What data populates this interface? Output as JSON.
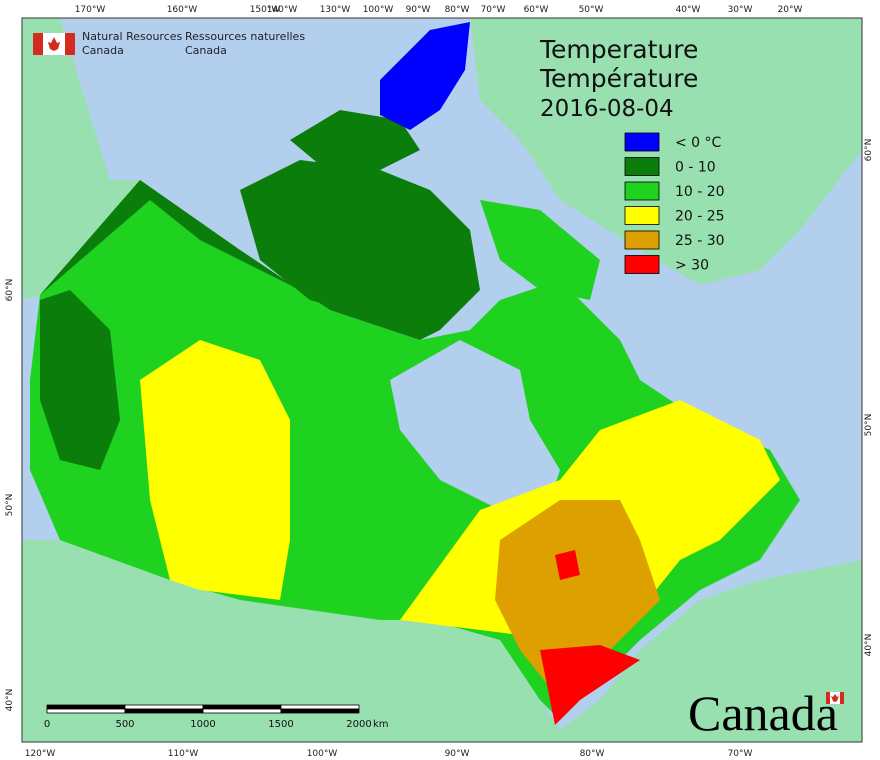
{
  "header": {
    "org_en": [
      "Natural Resources",
      "Canada"
    ],
    "org_fr": [
      "Ressources naturelles",
      "Canada"
    ],
    "title_en": "Temperature",
    "title_fr": "Température",
    "date": "2016-08-04"
  },
  "legend": {
    "items": [
      {
        "label": "< 0 °C",
        "color": "#0000ff"
      },
      {
        "label": "0 - 10",
        "color": "#0a7d0a"
      },
      {
        "label": "10 - 20",
        "color": "#1fd21f"
      },
      {
        "label": "20 - 25",
        "color": "#ffff00"
      },
      {
        "label": "25 - 30",
        "color": "#dea000"
      },
      {
        "label": "> 30",
        "color": "#ff0000"
      }
    ]
  },
  "scale_bar": {
    "labels": [
      "0",
      "500",
      "1000",
      "1500",
      "2000"
    ],
    "unit": "km"
  },
  "graticule": {
    "top": [
      "170°W",
      "160°W",
      "150°W",
      "140°W",
      "130°W",
      "100°W",
      "90°W",
      "80°W",
      "70°W",
      "60°W",
      "50°W",
      "40°W",
      "30°W",
      "20°W"
    ],
    "bottom": [
      "120°W",
      "110°W",
      "100°W",
      "90°W",
      "80°W",
      "70°W"
    ],
    "left": [
      "60°N",
      "50°N",
      "40°N"
    ],
    "right": [
      "60°N",
      "50°N",
      "40°N"
    ]
  },
  "wordmark": "Canada"
}
